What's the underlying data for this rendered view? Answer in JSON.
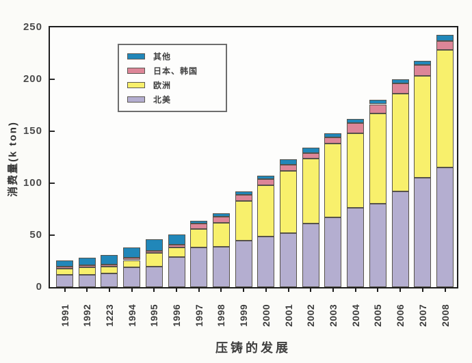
{
  "chart_data": {
    "type": "bar",
    "stacked": true,
    "title": "",
    "xlabel": "压铸的发展",
    "ylabel": "消费量(k ton)",
    "ylim": [
      0,
      250
    ],
    "yticks": [
      0,
      50,
      100,
      150,
      200,
      250
    ],
    "ytick_labels": [
      "0",
      "50",
      "100",
      "150",
      "200",
      "250"
    ],
    "grid": false,
    "categories": [
      "1991",
      "1992",
      "1223",
      "1994",
      "1995",
      "1996",
      "1997",
      "1998",
      "1999",
      "2000",
      "2001",
      "2002",
      "2003",
      "2004",
      "2005",
      "2006",
      "2007",
      "2008"
    ],
    "series": [
      {
        "id": "north-america",
        "name": "北美",
        "color": "#b4aed0",
        "values": [
          12,
          12,
          13,
          19,
          20,
          29,
          38,
          39,
          45,
          49,
          52,
          61,
          67,
          76,
          80,
          92,
          105,
          115
        ]
      },
      {
        "id": "europe",
        "name": "欧洲",
        "color": "#f8f06c",
        "values": [
          6,
          7,
          7,
          7,
          13,
          9,
          18,
          23,
          38,
          49,
          60,
          63,
          71,
          72,
          87,
          94,
          98,
          113
        ]
      },
      {
        "id": "japan-korea",
        "name": "日本、韩国",
        "color": "#dd8698",
        "values": [
          2,
          2,
          2,
          2,
          2,
          3,
          5,
          6,
          6,
          6,
          6,
          5,
          6,
          10,
          9,
          10,
          11,
          9
        ]
      },
      {
        "id": "other",
        "name": "其他",
        "color": "#2187b9",
        "values": [
          6,
          7,
          9,
          10,
          11,
          10,
          3,
          3,
          3,
          3,
          5,
          5,
          4,
          4,
          4,
          4,
          4,
          6
        ]
      }
    ],
    "legend": {
      "position": "upper-left-inside",
      "order": [
        "other",
        "japan-korea",
        "europe",
        "north-america"
      ]
    }
  }
}
